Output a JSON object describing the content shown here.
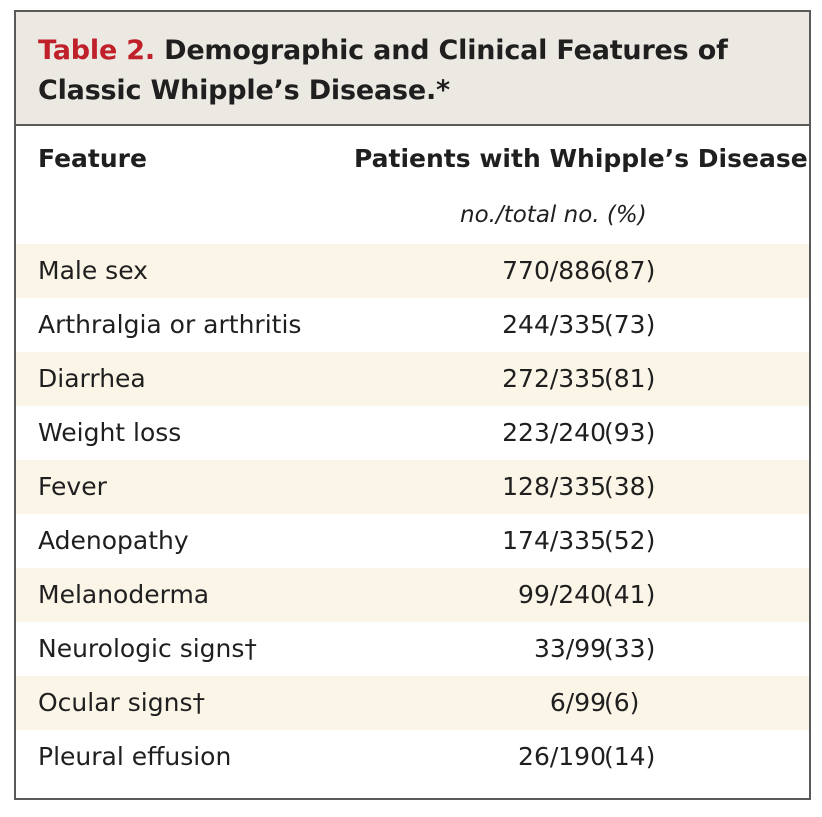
{
  "table": {
    "label": "Table 2.",
    "title": "Demographic and Clinical Features of Classic Whipple’s Disease.*",
    "columns": {
      "feature": "Feature",
      "patients": "Patients with Whipple’s Disease",
      "units": "no./total no. (%)"
    },
    "rows": [
      {
        "feature": "Male sex",
        "value": "770/886",
        "pct": "(87)"
      },
      {
        "feature": "Arthralgia or arthritis",
        "value": "244/335",
        "pct": "(73)"
      },
      {
        "feature": "Diarrhea",
        "value": "272/335",
        "pct": "(81)"
      },
      {
        "feature": "Weight loss",
        "value": "223/240",
        "pct": "(93)"
      },
      {
        "feature": "Fever",
        "value": "128/335",
        "pct": "(38)"
      },
      {
        "feature": "Adenopathy",
        "value": "174/335",
        "pct": "(52)"
      },
      {
        "feature": "Melanoderma",
        "value": "99/240",
        "pct": "(41)"
      },
      {
        "feature": "Neurologic signs†",
        "value": "33/99",
        "pct": "(33)"
      },
      {
        "feature": "Ocular signs†",
        "value": "6/99",
        "pct": "(6)"
      },
      {
        "feature": "Pleural effusion",
        "value": "26/190",
        "pct": "(14)"
      }
    ]
  },
  "colors": {
    "label_red": "#c0202a",
    "title_band": "#ece9e3",
    "row_shade": "#fbf5e8",
    "border": "#5a5a5a"
  }
}
